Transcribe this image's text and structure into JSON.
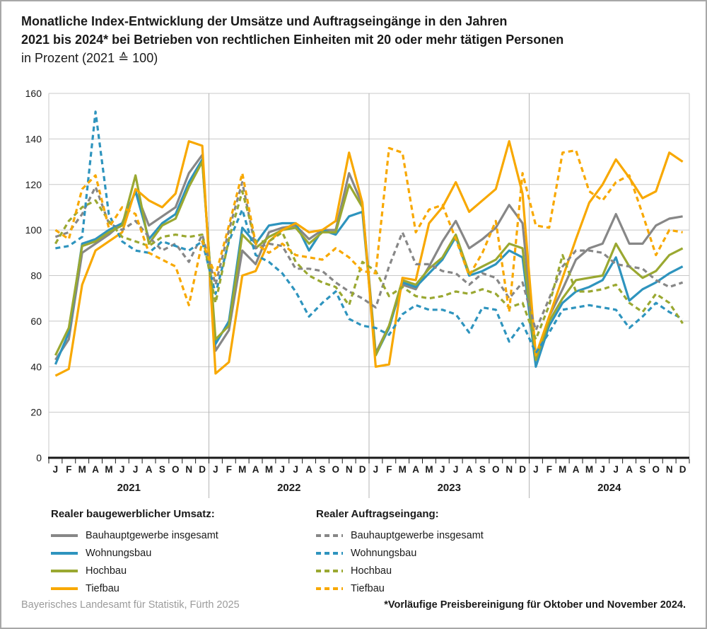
{
  "title": {
    "line1": "Monatliche Index-Entwicklung der Umsätze und Auftragseingänge in den Jahren",
    "line2": "2021 bis 2024* bei Betrieben von rechtlichen Einheiten mit 20 oder mehr tätigen Personen",
    "line3": "in Prozent (2021 ≙ 100)"
  },
  "footer": {
    "source": "Bayerisches Landesamt für Statistik, Fürth 2025",
    "note": "*Vorläufige Preisbereinigung für Oktober und November 2024."
  },
  "colors": {
    "gray": "#878787",
    "blue": "#2E94BE",
    "green": "#9AA831",
    "orange": "#F8A800",
    "gridline": "#c8c8c8",
    "separator": "#b5b5b5",
    "axis": "#1a1a1a"
  },
  "legend": {
    "left": {
      "header": "Realer baugewerblicher Umsatz:",
      "items": [
        {
          "label": "Bauhauptgewerbe insgesamt",
          "color": "gray",
          "dashed": false
        },
        {
          "label": "Wohnungsbau",
          "color": "blue",
          "dashed": false
        },
        {
          "label": "Hochbau",
          "color": "green",
          "dashed": false
        },
        {
          "label": "Tiefbau",
          "color": "orange",
          "dashed": false
        }
      ]
    },
    "right": {
      "header": "Realer Auftragseingang:",
      "items": [
        {
          "label": "Bauhauptgewerbe insgesamt",
          "color": "gray",
          "dashed": true
        },
        {
          "label": "Wohnungsbau",
          "color": "blue",
          "dashed": true
        },
        {
          "label": "Hochbau",
          "color": "green",
          "dashed": true
        },
        {
          "label": "Tiefbau",
          "color": "orange",
          "dashed": true
        }
      ]
    }
  },
  "chart_data": {
    "type": "line",
    "ylim": [
      0,
      160
    ],
    "ytick_step": 20,
    "grid": true,
    "legend_position": "bottom",
    "years": [
      "2021",
      "2022",
      "2023",
      "2024"
    ],
    "month_letters": [
      "J",
      "F",
      "M",
      "A",
      "M",
      "J",
      "J",
      "A",
      "S",
      "O",
      "N",
      "D"
    ],
    "series": [
      {
        "name": "umsatz-bauhauptgewerbe",
        "group": "Realer baugewerblicher Umsatz",
        "label": "Bauhauptgewerbe insgesamt",
        "color": "gray",
        "dashed": false,
        "values": [
          43,
          52,
          90,
          94,
          98,
          103,
          117,
          102,
          106,
          110,
          125,
          133,
          47,
          56,
          91,
          85,
          99,
          101,
          102,
          96,
          100,
          100,
          125,
          111,
          46,
          58,
          76,
          74,
          84,
          95,
          104,
          92,
          96,
          101,
          111,
          103,
          44,
          62,
          74,
          87,
          92,
          94,
          107,
          94,
          94,
          102,
          105,
          106
        ]
      },
      {
        "name": "umsatz-wohnungsbau",
        "group": "Realer baugewerblicher Umsatz",
        "label": "Wohnungsbau",
        "color": "blue",
        "dashed": false,
        "values": [
          41,
          55,
          94,
          96,
          100,
          103,
          117,
          96,
          103,
          107,
          121,
          131,
          50,
          60,
          101,
          94,
          102,
          103,
          103,
          91,
          100,
          98,
          106,
          108,
          45,
          57,
          77,
          75,
          81,
          87,
          97,
          80,
          82,
          85,
          91,
          88,
          40,
          58,
          68,
          73,
          75,
          78,
          88,
          69,
          74,
          77,
          81,
          84
        ]
      },
      {
        "name": "umsatz-hochbau",
        "group": "Realer baugewerblicher Umsatz",
        "label": "Hochbau",
        "color": "green",
        "dashed": false,
        "values": [
          45,
          57,
          93,
          95,
          99,
          102,
          124,
          94,
          102,
          105,
          119,
          130,
          52,
          58,
          98,
          92,
          97,
          100,
          101,
          94,
          99,
          99,
          120,
          110,
          45,
          58,
          78,
          76,
          83,
          88,
          98,
          81,
          84,
          87,
          94,
          92,
          43,
          60,
          70,
          78,
          79,
          80,
          94,
          84,
          79,
          82,
          89,
          92
        ]
      },
      {
        "name": "umsatz-tiefbau",
        "group": "Realer baugewerblicher Umsatz",
        "label": "Tiefbau",
        "color": "orange",
        "dashed": false,
        "values": [
          36,
          39,
          76,
          91,
          95,
          99,
          118,
          113,
          110,
          116,
          139,
          137,
          37,
          42,
          80,
          82,
          95,
          100,
          103,
          99,
          100,
          104,
          134,
          112,
          40,
          41,
          79,
          78,
          103,
          110,
          121,
          108,
          113,
          118,
          139,
          116,
          45,
          62,
          79,
          96,
          112,
          120,
          131,
          123,
          114,
          117,
          134,
          130
        ]
      },
      {
        "name": "auftrag-bauhauptgewerbe",
        "group": "Realer Auftragseingang",
        "label": "Bauhauptgewerbe insgesamt",
        "color": "gray",
        "dashed": true,
        "values": [
          97,
          99,
          107,
          119,
          103,
          100,
          104,
          97,
          91,
          94,
          86,
          98,
          76,
          100,
          121,
          92,
          94,
          93,
          83,
          83,
          82,
          77,
          73,
          70,
          66,
          84,
          99,
          85,
          85,
          82,
          81,
          76,
          81,
          79,
          70,
          77,
          56,
          70,
          84,
          91,
          91,
          90,
          85,
          84,
          83,
          78,
          75,
          77
        ]
      },
      {
        "name": "auftrag-wohnungsbau",
        "group": "Realer Auftragseingang",
        "label": "Wohnungsbau",
        "color": "blue",
        "dashed": true,
        "values": [
          92,
          93,
          97,
          152,
          107,
          95,
          91,
          90,
          95,
          93,
          91,
          95,
          72,
          95,
          109,
          89,
          86,
          81,
          73,
          62,
          68,
          73,
          61,
          58,
          57,
          54,
          63,
          67,
          65,
          65,
          63,
          55,
          66,
          65,
          51,
          59,
          46,
          55,
          65,
          66,
          67,
          66,
          65,
          57,
          62,
          68,
          64,
          61
        ]
      },
      {
        "name": "auftrag-hochbau",
        "group": "Realer Auftragseingang",
        "label": "Hochbau",
        "color": "green",
        "dashed": true,
        "values": [
          94,
          104,
          110,
          113,
          104,
          97,
          95,
          93,
          97,
          98,
          97,
          98,
          68,
          96,
          117,
          95,
          95,
          99,
          86,
          80,
          77,
          75,
          67,
          86,
          82,
          71,
          75,
          71,
          70,
          71,
          73,
          72,
          74,
          72,
          66,
          68,
          52,
          67,
          89,
          73,
          73,
          74,
          76,
          68,
          64,
          72,
          68,
          59
        ]
      },
      {
        "name": "auftrag-tiefbau",
        "group": "Realer Auftragseingang",
        "label": "Tiefbau",
        "color": "orange",
        "dashed": true,
        "values": [
          100,
          96,
          118,
          124,
          101,
          110,
          107,
          90,
          87,
          84,
          67,
          95,
          80,
          102,
          125,
          94,
          90,
          94,
          89,
          88,
          87,
          92,
          88,
          82,
          81,
          136,
          134,
          99,
          109,
          111,
          96,
          80,
          90,
          104,
          64,
          125,
          102,
          101,
          134,
          135,
          117,
          113,
          121,
          124,
          107,
          89,
          100,
          99
        ]
      }
    ]
  }
}
